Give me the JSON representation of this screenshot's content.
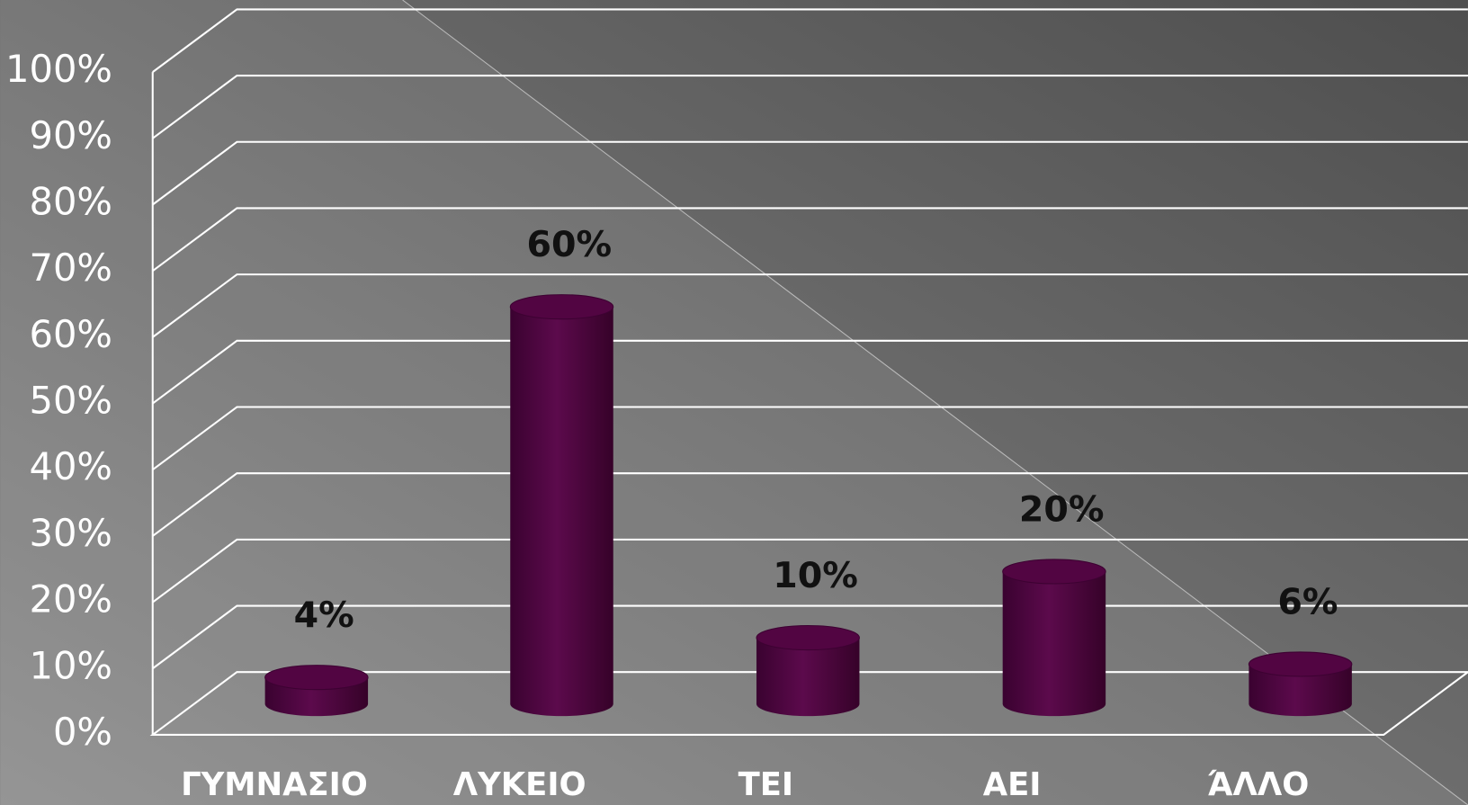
{
  "chart_data": {
    "type": "bar3d",
    "categories": [
      "ΓΥΜΝΑΣΙΟ",
      "ΛΥΚΕΙΟ",
      "ΤΕΙ",
      "ΑΕΙ",
      "ΆΛΛΟ"
    ],
    "values": [
      4,
      60,
      10,
      20,
      6
    ],
    "value_labels": [
      "4%",
      "60%",
      "10%",
      "20%",
      "6%"
    ],
    "color": "#520542",
    "ylim": [
      0,
      100
    ],
    "yticks": [
      {
        "value": 0,
        "label": "0%"
      },
      {
        "value": 10,
        "label": "10%"
      },
      {
        "value": 20,
        "label": "20%"
      },
      {
        "value": 30,
        "label": "30%"
      },
      {
        "value": 40,
        "label": "40%"
      },
      {
        "value": 50,
        "label": "50%"
      },
      {
        "value": 60,
        "label": "60%"
      },
      {
        "value": 70,
        "label": "70%"
      },
      {
        "value": 80,
        "label": "80%"
      },
      {
        "value": 90,
        "label": "90%"
      },
      {
        "value": 100,
        "label": "100%"
      }
    ],
    "grid": true
  }
}
